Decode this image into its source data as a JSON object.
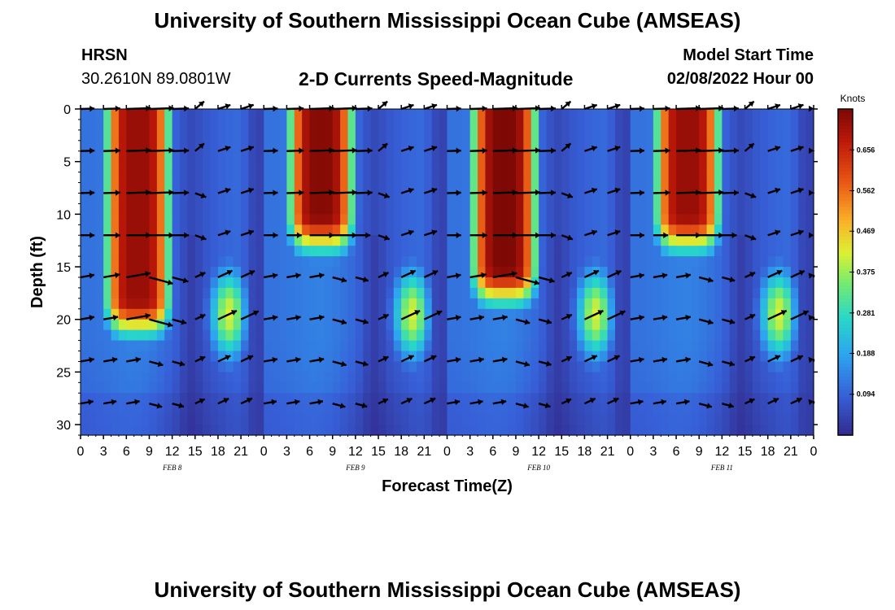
{
  "header": {
    "title": "University of Southern Mississippi Ocean Cube (AMSEAS)",
    "station": "HRSN",
    "coords": "30.2610N  89.0801W",
    "subtitle": "2-D Currents Speed-Magnitude",
    "start_label": "Model Start Time",
    "start_value": "02/08/2022 Hour 00"
  },
  "footer": {
    "title": "University of Southern Mississippi Ocean Cube (AMSEAS)"
  },
  "chart_data": {
    "type": "heatmap",
    "title": "2-D Currents Speed-Magnitude",
    "xlabel": "Forecast Time(Z)",
    "ylabel": "Depth (ft)",
    "x_range_hours": [
      0,
      96
    ],
    "y_range_ft": [
      0,
      31
    ],
    "y_ticks": [
      0,
      5,
      10,
      15,
      20,
      25,
      30
    ],
    "x_tick_hours": [
      0,
      3,
      6,
      9,
      12,
      15,
      18,
      21,
      24,
      27,
      30,
      33,
      36,
      39,
      42,
      45,
      48,
      51,
      54,
      57,
      60,
      63,
      66,
      69,
      72,
      75,
      78,
      81,
      84,
      87,
      90,
      93,
      96
    ],
    "x_tick_labels": [
      "0",
      "3",
      "6",
      "9",
      "12",
      "15",
      "18",
      "21",
      "0",
      "3",
      "6",
      "9",
      "12",
      "15",
      "18",
      "21",
      "0",
      "3",
      "6",
      "9",
      "12",
      "15",
      "18",
      "21",
      "0",
      "3",
      "6",
      "9",
      "12",
      "15",
      "18",
      "21",
      "0"
    ],
    "day_labels": [
      {
        "hour": 12,
        "text": "FEB 8"
      },
      {
        "hour": 36,
        "text": "FEB 9"
      },
      {
        "hour": 60,
        "text": "FEB 10"
      },
      {
        "hour": 84,
        "text": "FEB 11"
      }
    ],
    "colorbar": {
      "title": "Knots",
      "range": [
        0.0,
        0.75
      ],
      "ticks": [
        0.094,
        0.188,
        0.281,
        0.375,
        0.469,
        0.562,
        0.656
      ]
    },
    "arrow_depths_ft": [
      0,
      4,
      8,
      12,
      16,
      20,
      24,
      28
    ],
    "arrow_interval_hours": 3,
    "grid": false
  }
}
